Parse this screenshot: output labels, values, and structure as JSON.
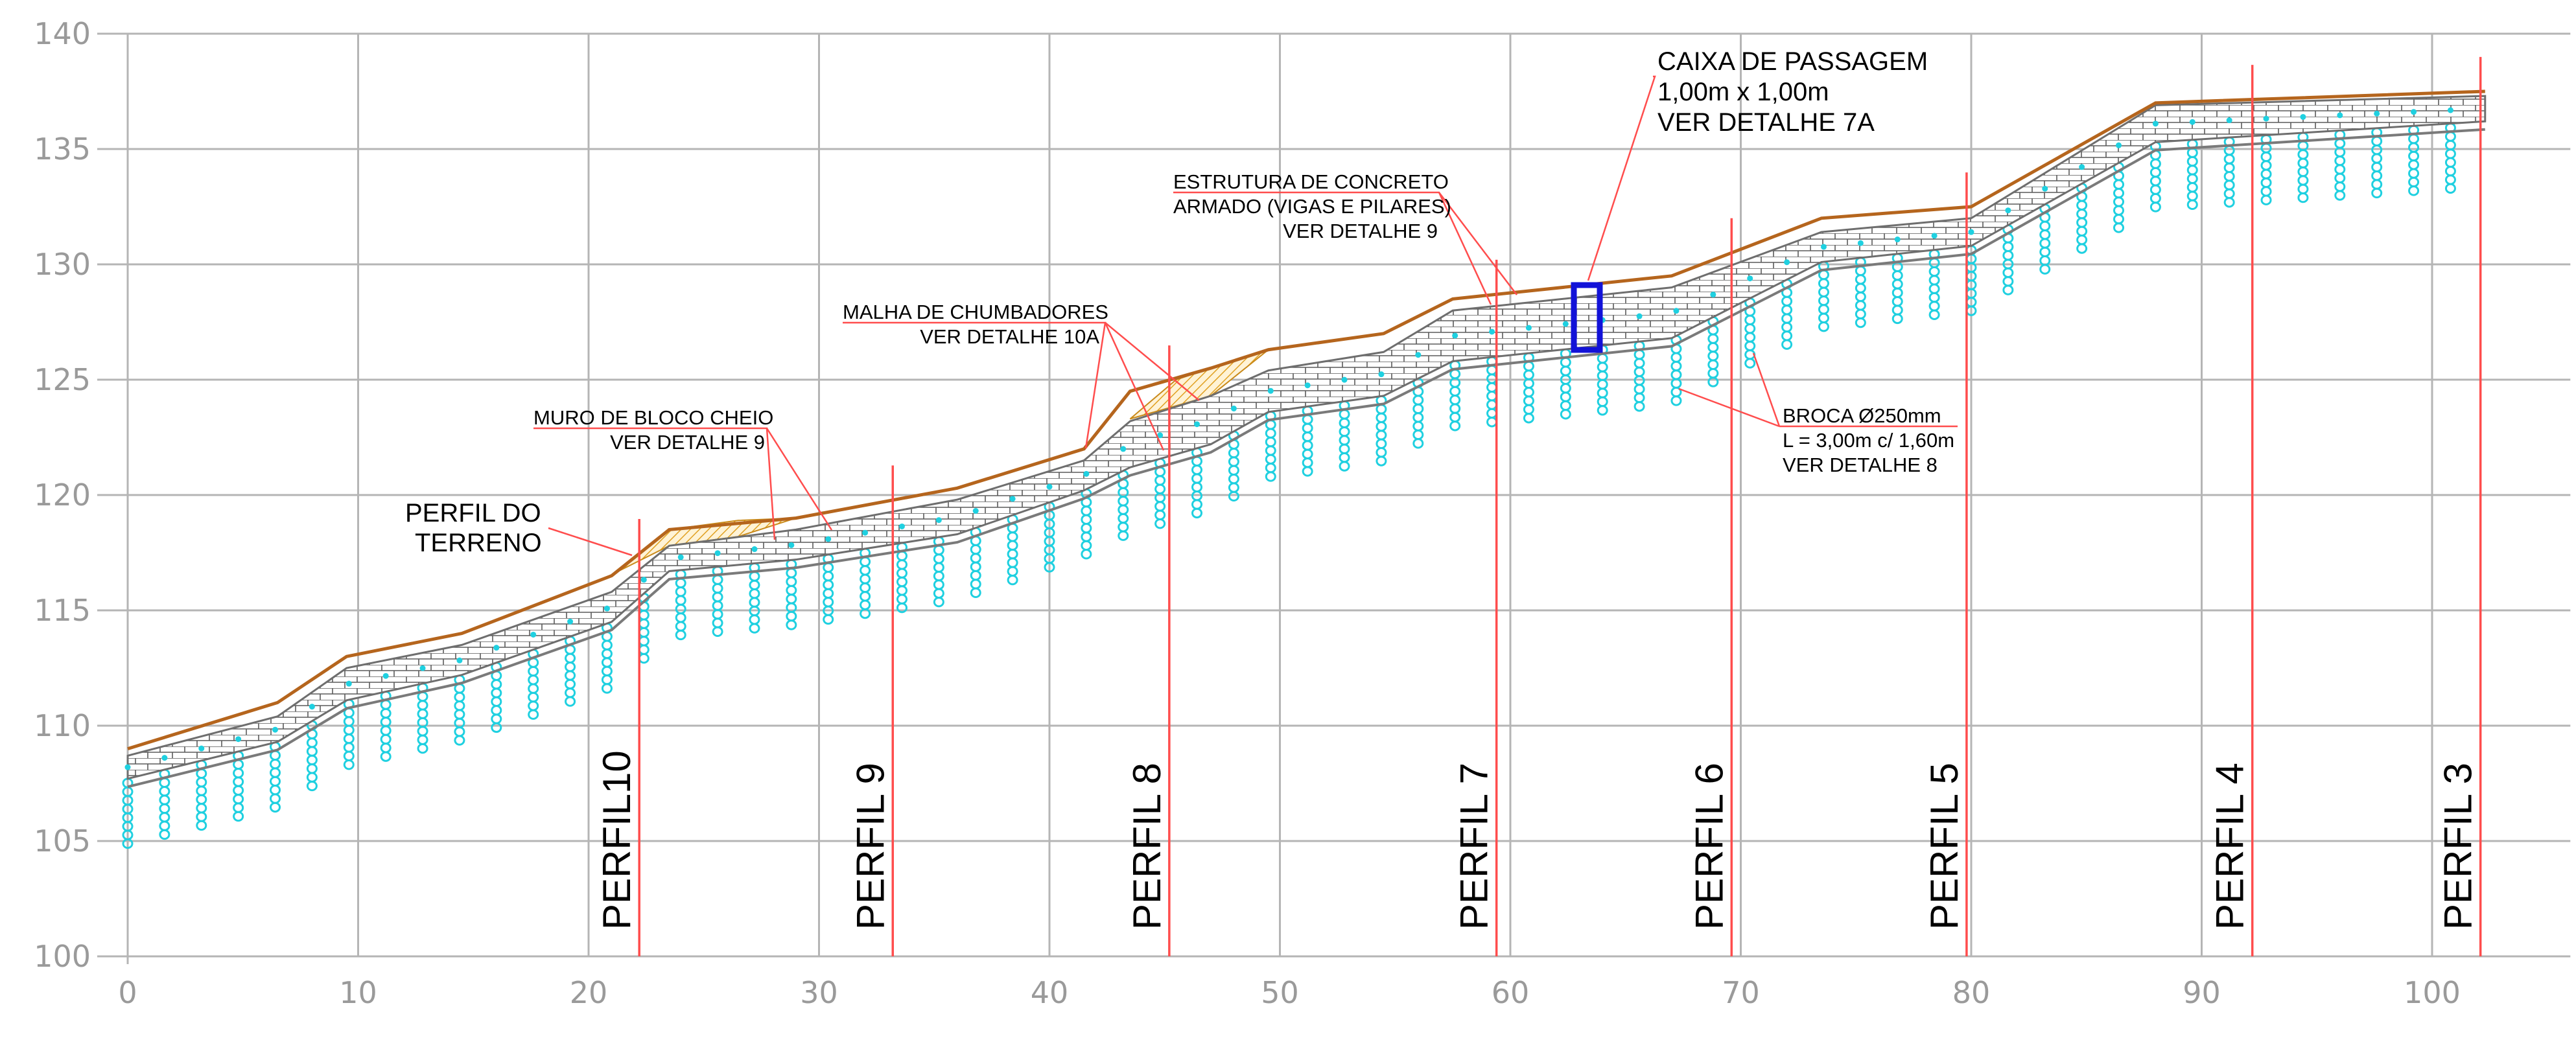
{
  "axes": {
    "x_ticks": [
      "0",
      "10",
      "20",
      "30",
      "40",
      "50",
      "60",
      "70",
      "80",
      "90",
      "100"
    ],
    "y_ticks": [
      "100",
      "105",
      "110",
      "115",
      "120",
      "125",
      "130",
      "135",
      "140"
    ],
    "xlim": [
      0,
      106
    ],
    "ylim": [
      100,
      140
    ]
  },
  "terrain_profile": [
    [
      0,
      109
    ],
    [
      6.5,
      111
    ],
    [
      9.5,
      113
    ],
    [
      14.5,
      114
    ],
    [
      21,
      116.5
    ],
    [
      23.5,
      118.5
    ],
    [
      29,
      119
    ],
    [
      36,
      120.3
    ],
    [
      41.5,
      122
    ],
    [
      43.5,
      124.5
    ],
    [
      47,
      125.5
    ],
    [
      49.5,
      126.3
    ],
    [
      54.5,
      127
    ],
    [
      57.5,
      128.5
    ],
    [
      67,
      129.5
    ],
    [
      73.5,
      132
    ],
    [
      80,
      132.5
    ],
    [
      88,
      137
    ],
    [
      102.3,
      137.5
    ]
  ],
  "wall_top": [
    [
      0,
      108.7
    ],
    [
      6.5,
      110.4
    ],
    [
      9.5,
      112.5
    ],
    [
      14.5,
      113.5
    ],
    [
      21,
      115.8
    ],
    [
      23.5,
      117.8
    ],
    [
      29,
      118.5
    ],
    [
      36,
      119.8
    ],
    [
      41.5,
      121.5
    ],
    [
      43.5,
      123.2
    ],
    [
      47,
      124.3
    ],
    [
      49.5,
      125.4
    ],
    [
      54.5,
      126.2
    ],
    [
      57.5,
      128
    ],
    [
      67,
      129
    ],
    [
      73.5,
      131.4
    ],
    [
      80,
      132
    ],
    [
      88,
      136.9
    ],
    [
      102.3,
      137.3
    ]
  ],
  "wall_bottom": [
    [
      0,
      107.7
    ],
    [
      6.5,
      109.3
    ],
    [
      9.5,
      111.1
    ],
    [
      14.5,
      112.2
    ],
    [
      21,
      114.5
    ],
    [
      23.5,
      116.7
    ],
    [
      29,
      117.2
    ],
    [
      36,
      118.3
    ],
    [
      41.5,
      120.2
    ],
    [
      43.5,
      121.2
    ],
    [
      47,
      122.2
    ],
    [
      49.5,
      123.6
    ],
    [
      54.5,
      124.3
    ],
    [
      57.5,
      125.8
    ],
    [
      67,
      126.8
    ],
    [
      73.5,
      130.1
    ],
    [
      80,
      130.8
    ],
    [
      88,
      135.3
    ],
    [
      102.3,
      136.2
    ]
  ],
  "cut_zones": [
    [
      [
        21.3,
        116.7
      ],
      [
        23.5,
        118.5
      ],
      [
        26.5,
        118.9
      ],
      [
        29,
        119
      ],
      [
        26.5,
        118.2
      ],
      [
        23.5,
        117.8
      ]
    ],
    [
      [
        43.5,
        123.3
      ],
      [
        45.5,
        125
      ],
      [
        47,
        125.5
      ],
      [
        49.5,
        126.3
      ],
      [
        47,
        124.3
      ]
    ]
  ],
  "pile_length_m": 3.0,
  "pile_spacing_m": 1.6,
  "perfis": [
    {
      "label": "PERFIL10",
      "x": 22.2
    },
    {
      "label": "PERFIL 9",
      "x": 33.2
    },
    {
      "label": "PERFIL 8",
      "x": 45.2
    },
    {
      "label": "PERFIL 7",
      "x": 59.4
    },
    {
      "label": "PERFIL 6",
      "x": 69.6
    },
    {
      "label": "PERFIL 5",
      "x": 79.8
    },
    {
      "label": "PERFIL 4",
      "x": 92.2
    },
    {
      "label": "PERFIL 3",
      "x": 102.1
    }
  ],
  "annotations": {
    "perfil_terreno": {
      "line1": "PERFIL DO",
      "line2": "TERRENO"
    },
    "muro": {
      "line1": "MURO DE BLOCO CHEIO",
      "line2": "VER DETALHE 9"
    },
    "malha": {
      "line1": "MALHA DE CHUMBADORES",
      "line2": "VER DETALHE 10A"
    },
    "estrutura": {
      "line1": "ESTRUTURA DE CONCRETO",
      "line2": "ARMADO (VIGAS E PILARES)",
      "line3": "VER DETALHE 9"
    },
    "caixa": {
      "line1": "CAIXA DE PASSAGEM",
      "line2": "1,00m x 1,00m",
      "line3": "VER DETALHE 7A"
    },
    "broca": {
      "line1": "BROCA Ø250mm",
      "line2": "L = 3,00m c/ 1,60m",
      "line3": "VER DETALHE 8"
    }
  },
  "colors": {
    "terrain": "#b5651d",
    "piles": "#1fd0e0",
    "leader": "#ff4d4d",
    "box": "#1212d8",
    "grid": "#b5b5b5"
  }
}
